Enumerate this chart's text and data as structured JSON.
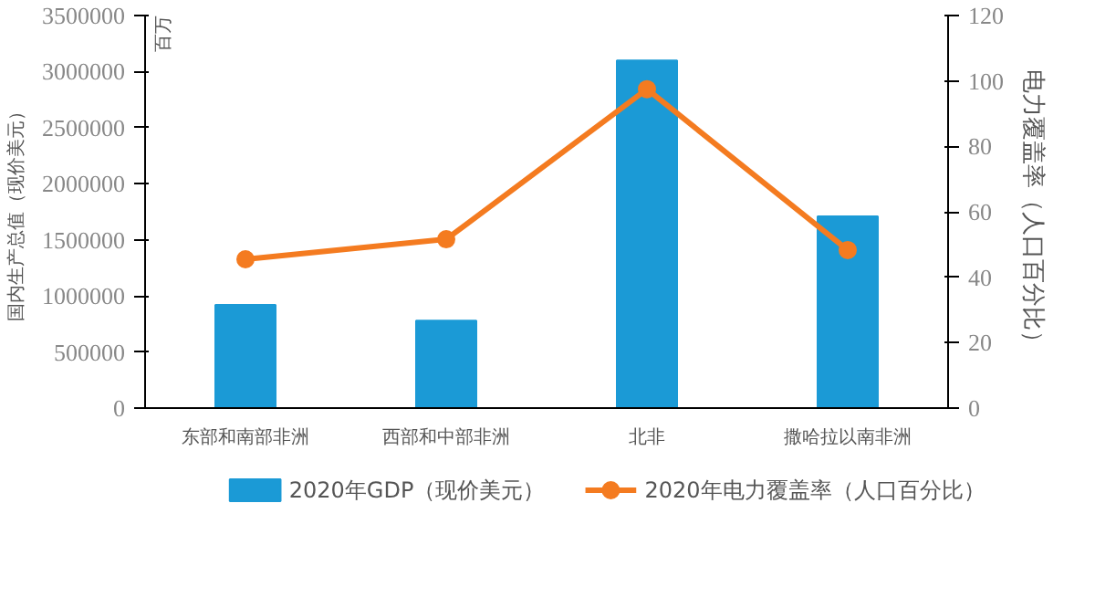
{
  "chart_data": {
    "type": "bar",
    "categories": [
      "东部和南部非洲",
      "西部和中部非洲",
      "北非",
      "撒哈拉以南非洲"
    ],
    "ylabel": "国内生产总值（现价美元）",
    "y2label": "电力覆盖率（人口百分比）",
    "annotations": [
      "百万"
    ],
    "series": [
      {
        "name": "2020年GDP（现价美元）",
        "color": "#1b9ad6",
        "values": [
          920000,
          780000,
          3100000,
          1710000
        ]
      },
      {
        "name": "2020年电力覆盖率（人口百分比）",
        "type": "line",
        "axis": "y2",
        "color": "#f47b20",
        "marker": "circle",
        "values": [
          45.5,
          51.6,
          97.5,
          48.3
        ]
      }
    ],
    "ylim": [
      0,
      3500000
    ],
    "yticks": [
      0,
      500000,
      1000000,
      1500000,
      2000000,
      2500000,
      3000000,
      3500000
    ],
    "y2lim": [
      0,
      120
    ],
    "y2ticks": [
      0,
      20,
      40,
      60,
      80,
      100,
      120
    ],
    "grid": false,
    "legend": "bottom"
  }
}
